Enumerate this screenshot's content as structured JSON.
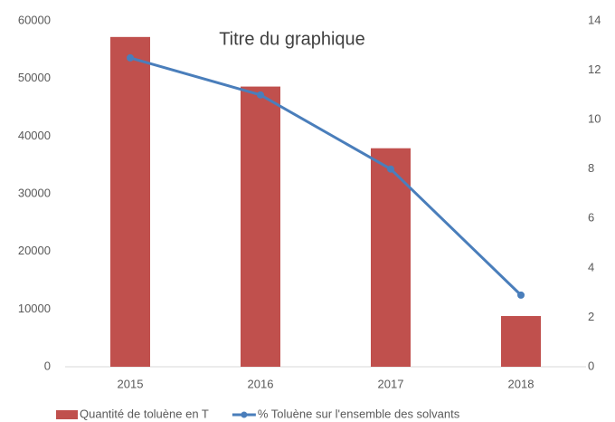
{
  "chart_data": {
    "type": "combo",
    "title": "Titre du graphique",
    "categories": [
      "2015",
      "2016",
      "2017",
      "2018"
    ],
    "series": [
      {
        "name": "Quantité de toluène en T",
        "type": "bar",
        "color": "#c0504d",
        "values": [
          57200,
          48600,
          37900,
          8800
        ]
      },
      {
        "name": "% Toluène sur l'ensemble des solvants",
        "type": "line",
        "axis": "y2",
        "color": "#4a7ebb",
        "values": [
          12.5,
          11,
          8,
          2.9
        ]
      }
    ],
    "ylim": [
      0,
      60000
    ],
    "yticks": [
      0,
      10000,
      20000,
      30000,
      40000,
      50000,
      60000
    ],
    "y2lim": [
      0,
      14
    ],
    "y2ticks": [
      0,
      2,
      4,
      6,
      8,
      10,
      12,
      14
    ],
    "grid": false
  }
}
